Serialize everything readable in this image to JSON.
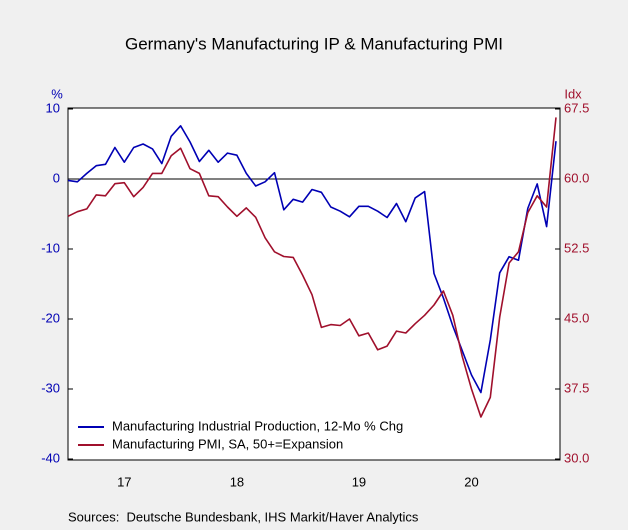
{
  "chart_data": {
    "type": "line",
    "title": "Germany's Manufacturing IP & Manufacturing PMI",
    "y_label": "%",
    "y2_label": "Idx",
    "source": "Sources:  Deutsche Bundesbank, IHS Markit/Haver Analytics",
    "categories": [
      null,
      null,
      null,
      null,
      null,
      null,
      "17",
      null,
      null,
      null,
      null,
      null,
      null,
      null,
      null,
      null,
      null,
      null,
      "18",
      null,
      null,
      null,
      null,
      null,
      null,
      null,
      null,
      null,
      null,
      null,
      null,
      "19",
      null,
      null,
      null,
      null,
      null,
      null,
      null,
      null,
      null,
      null,
      null,
      "20",
      null,
      null,
      null,
      null,
      null,
      null,
      null,
      null,
      null
    ],
    "series": [
      {
        "name": "Manufacturing Industrial Production, 12-Mo % Chg",
        "color": "#0000b4",
        "axis": "y",
        "values": [
          -0.2,
          -0.4,
          0.8,
          1.9,
          2.1,
          4.5,
          2.4,
          4.5,
          5.0,
          4.3,
          2.2,
          6.1,
          7.6,
          5.3,
          2.5,
          4.1,
          2.4,
          3.7,
          3.4,
          0.8,
          -1.0,
          -0.4,
          0.9,
          -4.4,
          -2.9,
          -3.3,
          -1.5,
          -1.9,
          -4.0,
          -4.6,
          -5.4,
          -3.9,
          -3.9,
          -4.6,
          -5.5,
          -3.5,
          -6.1,
          -2.7,
          -1.8,
          -13.5,
          -17,
          -21,
          -24.5,
          -28,
          -30.5,
          -23,
          -13.4,
          -11.1,
          -11.6,
          -4.2,
          -0.7,
          -6.8,
          5.4
        ]
      },
      {
        "name": "Manufacturing PMI, SA, 50+=Expansion",
        "color": "#a0102c",
        "axis": "y2",
        "values": [
          56.0,
          56.5,
          56.8,
          58.3,
          58.2,
          59.5,
          59.6,
          58.1,
          59.1,
          60.6,
          60.6,
          62.5,
          63.3,
          61.1,
          60.6,
          58.2,
          58.1,
          57.0,
          56.0,
          56.9,
          55.9,
          53.7,
          52.2,
          51.7,
          51.6,
          49.7,
          47.6,
          44.1,
          44.4,
          44.3,
          45.0,
          43.2,
          43.5,
          41.7,
          42.1,
          43.7,
          43.5,
          44.5,
          45.4,
          46.5,
          48.0,
          45.4,
          41,
          37.5,
          34.5,
          36.6,
          45.2,
          51.0,
          52.2,
          56.4,
          58.2,
          57.0,
          66.6
        ]
      }
    ],
    "ylim": [
      -40,
      10
    ],
    "yticks": [
      10,
      0,
      -10,
      -20,
      -30,
      -40
    ],
    "y2lim": [
      30,
      67.5
    ],
    "y2ticks": [
      67.5,
      {
        "value": 60,
        "label": "60.0"
      },
      52.5,
      {
        "value": 45,
        "label": "45.0"
      },
      37.5,
      {
        "value": 30,
        "label": "30.0"
      }
    ],
    "reference_line": 0,
    "legend": "lower left",
    "grid": false
  }
}
